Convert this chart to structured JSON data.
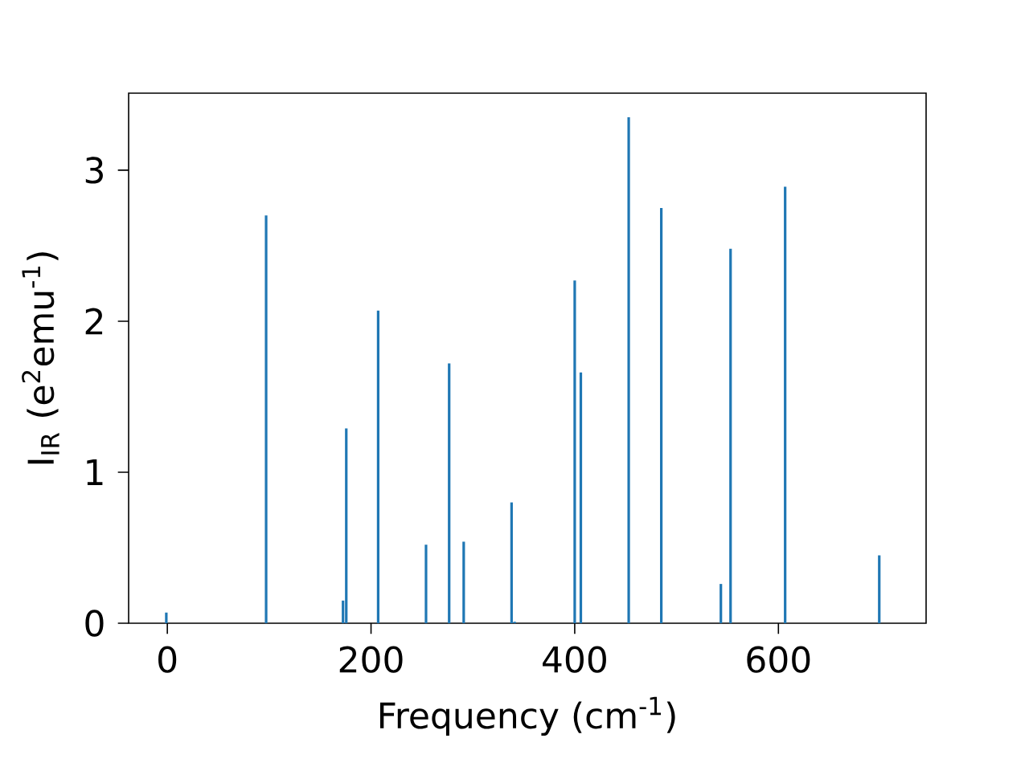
{
  "chart_data": {
    "type": "bar",
    "xlabel": "Frequency (cm$^{-1}$)",
    "ylabel": "I$_{IR}$ (e$^{2}$emu$^{-1}$)",
    "x": [
      -1,
      97,
      172.5,
      175.7,
      207,
      254,
      276.7,
      291,
      338,
      341,
      400,
      406,
      453,
      485,
      543.5,
      553,
      606.6,
      699
    ],
    "values": [
      0.07,
      2.7,
      0.15,
      1.29,
      2.07,
      0.52,
      1.72,
      0.54,
      0.8,
      0.01,
      2.27,
      1.66,
      3.35,
      2.75,
      0.26,
      2.48,
      2.89,
      0.45
    ],
    "color": "#1f77b4",
    "xlim": [
      -38,
      745
    ],
    "ylim": [
      0,
      3.51
    ],
    "xticks": [
      0,
      200,
      400,
      600
    ],
    "yticks": [
      0,
      1,
      2,
      3
    ]
  }
}
